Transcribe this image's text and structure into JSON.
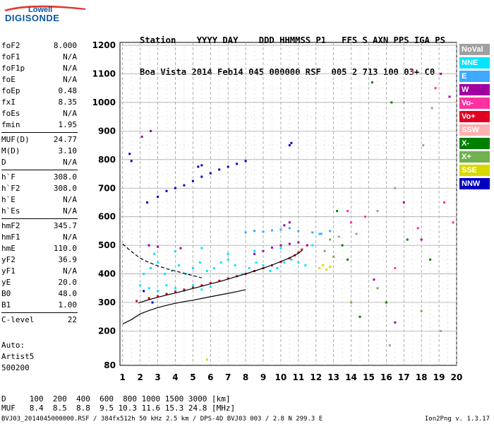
{
  "logo": {
    "top": "Lowell",
    "main": "DIGISONDE"
  },
  "header": {
    "line1": "Station    YYYY DAY    DDD HHMMSS P1   FFS S AXN PPS IGA PS",
    "line2": "Boa Vista 2014 Feb14 045 000000 RSF  005 2 713 100 03+ C0"
  },
  "params": [
    {
      "label": "foF2",
      "value": "8.000"
    },
    {
      "label": "foF1",
      "value": "N/A"
    },
    {
      "label": "foF1p",
      "value": "N/A"
    },
    {
      "label": "foE",
      "value": "N/A"
    },
    {
      "label": "foEp",
      "value": "0.48"
    },
    {
      "label": "fxI",
      "value": "8.35"
    },
    {
      "label": "foEs",
      "value": "N/A"
    },
    {
      "label": "fmin",
      "value": "1.95"
    },
    {
      "label": "MUF(D)",
      "value": "24.77"
    },
    {
      "label": "M(D)",
      "value": "3.10"
    },
    {
      "label": "D",
      "value": "N/A"
    },
    {
      "label": "h`F",
      "value": "308.0"
    },
    {
      "label": "h`F2",
      "value": "308.0"
    },
    {
      "label": "h`E",
      "value": "N/A"
    },
    {
      "label": "h`Es",
      "value": "N/A"
    },
    {
      "label": "hmF2",
      "value": "345.7"
    },
    {
      "label": "hmF1",
      "value": "N/A"
    },
    {
      "label": "hmE",
      "value": "110.0"
    },
    {
      "label": "yF2",
      "value": "36.9"
    },
    {
      "label": "yF1",
      "value": "N/A"
    },
    {
      "label": "yE",
      "value": "20.0"
    },
    {
      "label": "B0",
      "value": "48.0"
    },
    {
      "label": "B1",
      "value": "1.00"
    },
    {
      "label": "C-level",
      "value": "22"
    }
  ],
  "autoscale": {
    "line1": "Auto:",
    "line2": "Artist5",
    "line3": "500200"
  },
  "legend": [
    {
      "label": "NoVal",
      "color": "#a0a0a0"
    },
    {
      "label": "NNE",
      "color": "#00e5ff"
    },
    {
      "label": "E",
      "color": "#3fa8ff"
    },
    {
      "label": "W",
      "color": "#a000a0"
    },
    {
      "label": "Vo-",
      "color": "#ff30a0"
    },
    {
      "label": "Vo+",
      "color": "#e00020"
    },
    {
      "label": "SSW",
      "color": "#ffb0b0"
    },
    {
      "label": "X-",
      "color": "#008000"
    },
    {
      "label": "X+",
      "color": "#70b050"
    },
    {
      "label": "SSE",
      "color": "#d8d800"
    },
    {
      "label": "NNW",
      "color": "#0000c0"
    }
  ],
  "bottom": {
    "d_line": "D     100  200  400  600  800 1000 1500 3000 [km]",
    "muf_line": "MUF   8.4  8.5  8.8  9.5 10.3 11.6 15.3 24.8 [MHz]"
  },
  "footer": {
    "left": "BVJ03_2014045000000.RSF / 384fx512h 50 kHz 2.5 km / DPS-4D BVJ03 003 / 2.8 N 299.3 E",
    "right": "Ion2Png v. 1.3.17"
  },
  "chart_data": {
    "type": "scatter",
    "title": "",
    "xlabel": "",
    "ylabel": "",
    "x_ticks": [
      1,
      2,
      3,
      4,
      5,
      6,
      7,
      8,
      9,
      10,
      11,
      12,
      13,
      14,
      15,
      16,
      17,
      18,
      19,
      20
    ],
    "y_ticks": [
      80,
      200,
      300,
      400,
      500,
      600,
      700,
      800,
      900,
      1000,
      1100,
      1200
    ],
    "xlim": [
      0.85,
      20.0
    ],
    "ylim": [
      80,
      1210
    ],
    "grid": true,
    "legend_position": "right",
    "series": [
      {
        "name": "NNE",
        "color": "#00e5ff",
        "points": [
          [
            2.2,
            400
          ],
          [
            2.6,
            420
          ],
          [
            3.0,
            440
          ],
          [
            3.4,
            400
          ],
          [
            3.8,
            410
          ],
          [
            4.2,
            430
          ],
          [
            4.6,
            400
          ],
          [
            5.0,
            420
          ],
          [
            5.4,
            440
          ],
          [
            5.8,
            410
          ],
          [
            6.2,
            420
          ],
          [
            6.6,
            440
          ],
          [
            7.0,
            450
          ],
          [
            7.4,
            430
          ],
          [
            7.8,
            400
          ],
          [
            8.2,
            420
          ],
          [
            8.6,
            440
          ],
          [
            9.0,
            430
          ],
          [
            9.4,
            410
          ],
          [
            9.8,
            420
          ],
          [
            10.2,
            440
          ],
          [
            10.6,
            450
          ],
          [
            11.0,
            440
          ],
          [
            11.4,
            430
          ],
          [
            2.0,
            360
          ],
          [
            2.5,
            350
          ],
          [
            3.0,
            340
          ],
          [
            3.5,
            360
          ],
          [
            4.0,
            350
          ],
          [
            4.5,
            340
          ],
          [
            5.0,
            360
          ],
          [
            5.5,
            345
          ],
          [
            6.0,
            355
          ],
          [
            2.8,
            470
          ],
          [
            4.0,
            480
          ],
          [
            5.5,
            490
          ],
          [
            7.0,
            470
          ],
          [
            8.5,
            480
          ],
          [
            10.0,
            490
          ],
          [
            11.8,
            500
          ],
          [
            12.2,
            540
          ]
        ]
      },
      {
        "name": "E",
        "color": "#3fa8ff",
        "points": [
          [
            8.0,
            545
          ],
          [
            8.5,
            550
          ],
          [
            9.0,
            548
          ],
          [
            9.5,
            552
          ],
          [
            10.0,
            555
          ],
          [
            10.5,
            560
          ],
          [
            11.0,
            550
          ],
          [
            11.8,
            545
          ],
          [
            12.3,
            540
          ],
          [
            12.8,
            550
          ]
        ]
      },
      {
        "name": "W",
        "color": "#a000a0",
        "points": [
          [
            8.5,
            470
          ],
          [
            9.0,
            480
          ],
          [
            9.5,
            492
          ],
          [
            10.0,
            500
          ],
          [
            10.5,
            505
          ],
          [
            11.0,
            510
          ],
          [
            11.5,
            500
          ],
          [
            2.5,
            500
          ],
          [
            3.0,
            495
          ],
          [
            4.3,
            490
          ],
          [
            10.2,
            570
          ],
          [
            10.5,
            580
          ],
          [
            15.3,
            380
          ],
          [
            16.5,
            230
          ],
          [
            17.0,
            650
          ],
          [
            18.0,
            520
          ],
          [
            19.1,
            1100
          ],
          [
            19.6,
            1020
          ],
          [
            2.1,
            880
          ],
          [
            2.6,
            900
          ]
        ]
      },
      {
        "name": "Vo+",
        "color": "#e00020",
        "points": [
          [
            1.8,
            305
          ],
          [
            2.5,
            315
          ],
          [
            3.0,
            322
          ],
          [
            3.5,
            330
          ],
          [
            4.0,
            338
          ],
          [
            4.5,
            345
          ],
          [
            5.0,
            352
          ],
          [
            5.5,
            360
          ],
          [
            6.0,
            368
          ],
          [
            6.5,
            376
          ],
          [
            7.0,
            384
          ],
          [
            7.5,
            392
          ],
          [
            8.0,
            400
          ],
          [
            8.5,
            410
          ],
          [
            9.0,
            420
          ],
          [
            9.5,
            430
          ],
          [
            10.0,
            442
          ],
          [
            10.5,
            455
          ],
          [
            10.8,
            465
          ],
          [
            11.0,
            475
          ],
          [
            11.2,
            485
          ]
        ]
      },
      {
        "name": "Vo-",
        "color": "#ff30a0",
        "points": [
          [
            13.8,
            620
          ],
          [
            14.0,
            580
          ],
          [
            14.8,
            600
          ],
          [
            16.5,
            420
          ],
          [
            17.8,
            560
          ],
          [
            19.3,
            650
          ],
          [
            19.8,
            580
          ],
          [
            17.5,
            1110
          ],
          [
            18.8,
            1050
          ]
        ]
      },
      {
        "name": "X-",
        "color": "#008000",
        "points": [
          [
            13.2,
            620
          ],
          [
            13.5,
            500
          ],
          [
            13.8,
            450
          ],
          [
            14.5,
            250
          ],
          [
            16.0,
            300
          ],
          [
            17.2,
            520
          ],
          [
            18.5,
            450
          ],
          [
            15.2,
            1070
          ],
          [
            16.3,
            1000
          ]
        ]
      },
      {
        "name": "X+",
        "color": "#70b050",
        "points": [
          [
            12.5,
            480
          ],
          [
            12.8,
            520
          ],
          [
            13.0,
            460
          ],
          [
            14.0,
            300
          ],
          [
            15.5,
            350
          ],
          [
            18.0,
            270
          ]
        ]
      },
      {
        "name": "SSE",
        "color": "#d8d800",
        "points": [
          [
            12.2,
            420
          ],
          [
            12.4,
            430
          ],
          [
            12.6,
            415
          ],
          [
            12.8,
            425
          ],
          [
            5.8,
            100
          ]
        ]
      },
      {
        "name": "NNW",
        "color": "#0000c0",
        "points": [
          [
            4.0,
            700
          ],
          [
            4.5,
            710
          ],
          [
            5.0,
            725
          ],
          [
            5.5,
            740
          ],
          [
            6.0,
            752
          ],
          [
            6.5,
            765
          ],
          [
            7.0,
            775
          ],
          [
            7.5,
            785
          ],
          [
            8.0,
            795
          ],
          [
            5.3,
            775
          ],
          [
            5.5,
            780
          ],
          [
            10.5,
            850
          ],
          [
            10.6,
            858
          ],
          [
            1.4,
            820
          ],
          [
            1.5,
            795
          ],
          [
            2.4,
            650
          ],
          [
            3.0,
            670
          ],
          [
            3.5,
            690
          ],
          [
            2.2,
            340
          ],
          [
            2.7,
            300
          ]
        ]
      },
      {
        "name": "NoVal",
        "color": "#a0a0a0",
        "points": [
          [
            13.3,
            530
          ],
          [
            14.3,
            540
          ],
          [
            15.5,
            620
          ],
          [
            16.5,
            700
          ],
          [
            17.0,
            1000
          ],
          [
            18.1,
            850
          ],
          [
            18.6,
            980
          ],
          [
            19.1,
            200
          ],
          [
            16.2,
            150
          ]
        ]
      }
    ],
    "curves": [
      {
        "color": "#000000",
        "dashed": false,
        "points": [
          [
            1.0,
            225
          ],
          [
            1.5,
            240
          ],
          [
            2.0,
            260
          ],
          [
            2.5,
            272
          ],
          [
            3.0,
            282
          ],
          [
            3.5,
            290
          ],
          [
            4.0,
            297
          ],
          [
            4.5,
            303
          ],
          [
            5.0,
            308
          ],
          [
            5.5,
            314
          ],
          [
            6.0,
            320
          ],
          [
            6.5,
            326
          ],
          [
            7.0,
            332
          ],
          [
            7.5,
            338
          ],
          [
            8.0,
            345
          ]
        ]
      },
      {
        "color": "#000000",
        "dashed": false,
        "points": [
          [
            1.9,
            298
          ],
          [
            2.5,
            310
          ],
          [
            3.0,
            318
          ],
          [
            3.5,
            326
          ],
          [
            4.0,
            333
          ],
          [
            4.5,
            341
          ],
          [
            5.0,
            349
          ],
          [
            5.5,
            357
          ],
          [
            6.0,
            365
          ],
          [
            6.5,
            373
          ],
          [
            7.0,
            382
          ],
          [
            7.5,
            391
          ],
          [
            8.0,
            400
          ],
          [
            8.5,
            410
          ],
          [
            9.0,
            420
          ],
          [
            9.5,
            431
          ],
          [
            10.0,
            443
          ],
          [
            10.5,
            456
          ],
          [
            11.0,
            472
          ],
          [
            11.2,
            482
          ]
        ]
      },
      {
        "color": "#000000",
        "dashed": true,
        "points": [
          [
            1.0,
            505
          ],
          [
            1.5,
            478
          ],
          [
            2.0,
            455
          ],
          [
            2.5,
            440
          ],
          [
            3.0,
            428
          ],
          [
            3.5,
            418
          ],
          [
            4.0,
            410
          ],
          [
            4.5,
            402
          ],
          [
            5.0,
            394
          ],
          [
            5.5,
            386
          ]
        ]
      }
    ]
  }
}
